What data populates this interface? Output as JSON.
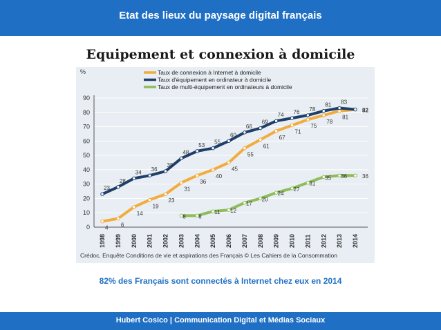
{
  "header": {
    "title": "Etat des lieux du paysage digital français"
  },
  "slide": {
    "title": "Equipement et connexion à domicile",
    "caption": "82% des Français sont connectés à Internet chez eux en 2014"
  },
  "footer": {
    "text": "Hubert Cosico | Communication Digital et Médias Sociaux"
  },
  "colors": {
    "bar": "#1f6fc5",
    "chart_bg": "#e8eef3"
  },
  "chart_data": {
    "type": "line",
    "ylabel": "%",
    "ylim": [
      0,
      90
    ],
    "yticks": [
      0,
      10,
      20,
      30,
      40,
      50,
      60,
      70,
      80,
      90
    ],
    "grid": true,
    "legend_position": "top-left",
    "source": "Crédoc, Enquête Conditions de vie et aspirations des Français  © Les Cahiers de la Consommation",
    "x": [
      "1998",
      "1999",
      "2000",
      "2001",
      "2002",
      "2003",
      "2004",
      "2005",
      "2006",
      "2007",
      "2008",
      "2009",
      "2010",
      "2011",
      "2012",
      "2013",
      "2014"
    ],
    "series": [
      {
        "name": "Taux de connexion à Internet à domicile",
        "color": "#f2ac3e",
        "values": [
          4,
          6,
          14,
          19,
          23,
          31,
          36,
          40,
          45,
          55,
          61,
          67,
          71,
          75,
          78,
          81,
          82
        ]
      },
      {
        "name": "Taux d'équipement en ordinateur à domicile",
        "color": "#1f3f6b",
        "values": [
          23,
          28,
          34,
          36,
          39,
          48,
          53,
          55,
          60,
          66,
          69,
          74,
          76,
          78,
          81,
          83,
          82
        ]
      },
      {
        "name": "Taux de multi-équipement en ordinateurs à domicile",
        "color": "#8fbc5a",
        "values": [
          null,
          null,
          null,
          null,
          null,
          8,
          8,
          11,
          12,
          17,
          20,
          24,
          27,
          31,
          35,
          36,
          36
        ]
      }
    ]
  }
}
